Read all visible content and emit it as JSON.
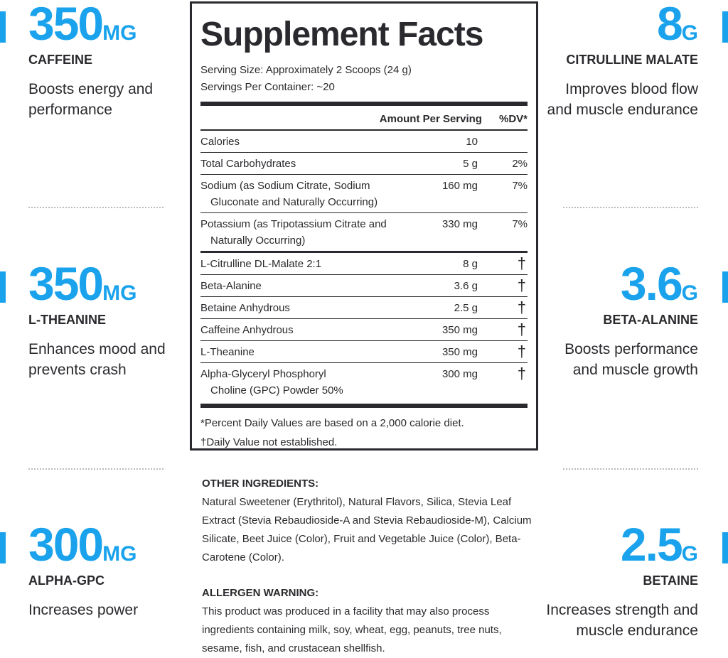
{
  "accent_color": "#1aa3ec",
  "left_stats": [
    {
      "value": "350",
      "unit": "MG",
      "label": "CAFFEINE",
      "desc": "Boosts energy and performance"
    },
    {
      "value": "350",
      "unit": "MG",
      "label": "L-THEANINE",
      "desc": "Enhances mood and prevents crash"
    },
    {
      "value": "300",
      "unit": "MG",
      "label": "ALPHA-GPC",
      "desc": "Increases power"
    }
  ],
  "right_stats": [
    {
      "value": "8",
      "unit": "G",
      "label": "CITRULLINE MALATE",
      "desc": "Improves blood flow and muscle endurance"
    },
    {
      "value": "3.6",
      "unit": "G",
      "label": "BETA-ALANINE",
      "desc": "Boosts performance and muscle growth"
    },
    {
      "value": "2.5",
      "unit": "G",
      "label": "BETAINE",
      "desc": "Increases strength and muscle endurance"
    }
  ],
  "facts": {
    "title": "Supplement Facts",
    "serving_size": "Serving Size: Approximately 2 Scoops (24 g)",
    "servings_per_container": "Servings Per Container: ~20",
    "col_amount": "Amount Per Serving",
    "col_dv": "%DV*",
    "rows": [
      {
        "name": "Calories",
        "cont": "",
        "amount": "10",
        "dv": ""
      },
      {
        "name": "Total Carbohydrates",
        "cont": "",
        "amount": "5 g",
        "dv": "2%"
      },
      {
        "name": "Sodium (as Sodium Citrate, Sodium",
        "cont": "Gluconate and Naturally Occurring)",
        "amount": "160 mg",
        "dv": "7%"
      },
      {
        "name": "Potassium (as Tripotassium Citrate and",
        "cont": "Naturally Occurring)",
        "amount": "330 mg",
        "dv": "7%"
      },
      {
        "name": "L-Citrulline DL-Malate 2:1",
        "cont": "",
        "amount": "8 g",
        "dv": "†"
      },
      {
        "name": "Beta-Alanine",
        "cont": "",
        "amount": "3.6 g",
        "dv": "†"
      },
      {
        "name": "Betaine Anhydrous",
        "cont": "",
        "amount": "2.5 g",
        "dv": "†"
      },
      {
        "name": "Caffeine Anhydrous",
        "cont": "",
        "amount": "350 mg",
        "dv": "†"
      },
      {
        "name": "L-Theanine",
        "cont": "",
        "amount": "350 mg",
        "dv": "†"
      },
      {
        "name": "Alpha-Glyceryl Phosphoryl",
        "cont": "Choline (GPC) Powder 50%",
        "amount": "300 mg",
        "dv": "†"
      }
    ],
    "footnote1": "*Percent Daily Values are based on a 2,000 calorie diet.",
    "footnote2": "†Daily Value not established."
  },
  "other_ingredients": {
    "heading": "OTHER INGREDIENTS:",
    "text": "Natural Sweetener (Erythritol), Natural Flavors, Silica, Stevia Leaf Extract (Stevia Rebaudioside-A and Stevia Rebaudioside-M), Calcium Silicate, Beet Juice (Color), Fruit and Vegetable Juice (Color), Beta-Carotene (Color)."
  },
  "allergen": {
    "heading": "ALLERGEN WARNING:",
    "text": "This product was produced in a facility that may also process ingredients containing milk, soy, wheat, egg, peanuts, tree nuts, sesame, fish, and crustacean shellfish."
  }
}
